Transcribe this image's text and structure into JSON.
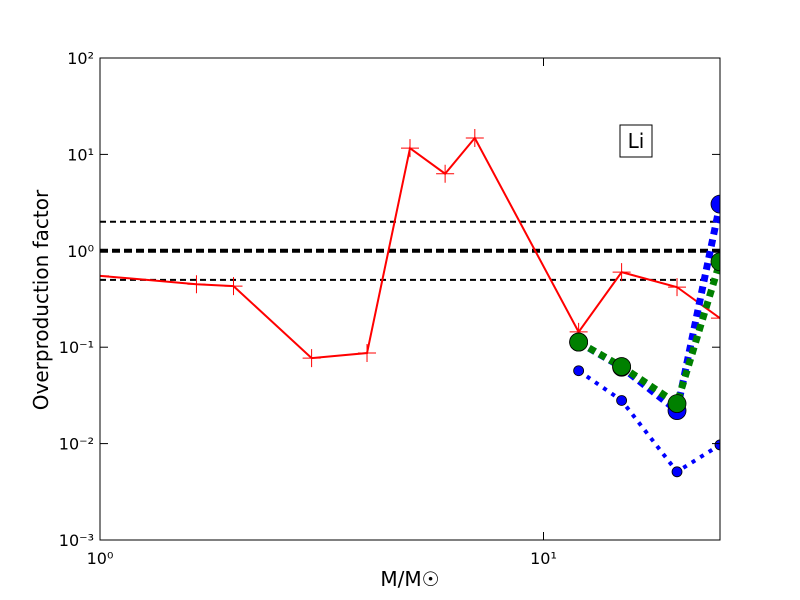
{
  "chart_data": {
    "type": "line",
    "xlabel": "M/M☉",
    "ylabel": "Overproduction factor",
    "annotation": "Li",
    "xscale": "log",
    "yscale": "log",
    "xlim": [
      1,
      25
    ],
    "ylim": [
      0.001,
      100
    ],
    "xticks": [
      {
        "value": 1,
        "label": "10⁰"
      },
      {
        "value": 10,
        "label": "10¹"
      }
    ],
    "yticks": [
      {
        "value": 0.001,
        "label": "10⁻³"
      },
      {
        "value": 0.01,
        "label": "10⁻²"
      },
      {
        "value": 0.1,
        "label": "10⁻¹"
      },
      {
        "value": 1,
        "label": "10⁰"
      },
      {
        "value": 10,
        "label": "10¹"
      },
      {
        "value": 100,
        "label": "10²"
      }
    ],
    "reference_lines": [
      {
        "value": 2,
        "color": "#000000",
        "thick": false
      },
      {
        "value": 1,
        "color": "#000000",
        "thick": true
      },
      {
        "value": 0.5,
        "color": "#000000",
        "thick": false
      }
    ],
    "series": [
      {
        "color": "#ff0000",
        "style": "solid",
        "marker": "plus",
        "x": [
          1,
          1.65,
          2,
          3,
          4,
          5,
          6,
          7,
          12,
          15,
          20,
          25
        ],
        "values": [
          0.55,
          0.45,
          0.43,
          0.077,
          0.087,
          11.6,
          6.3,
          14.8,
          0.144,
          0.6,
          0.42,
          0.2
        ]
      },
      {
        "color": "#0000ff",
        "style": "thick-dotted",
        "marker": "big-circle",
        "x": [
          12,
          15,
          20,
          25
        ],
        "values": [
          0.113,
          0.062,
          0.022,
          3.05
        ]
      },
      {
        "color": "#008000",
        "style": "thick-dotted",
        "marker": "big-circle",
        "x": [
          12,
          15,
          20,
          25
        ],
        "values": [
          0.113,
          0.063,
          0.026,
          0.77
        ]
      },
      {
        "color": "#0000ff",
        "style": "dotted",
        "marker": "small-circle",
        "x": [
          12,
          15,
          20,
          25
        ],
        "values": [
          0.057,
          0.028,
          0.0051,
          0.0097
        ]
      }
    ]
  }
}
